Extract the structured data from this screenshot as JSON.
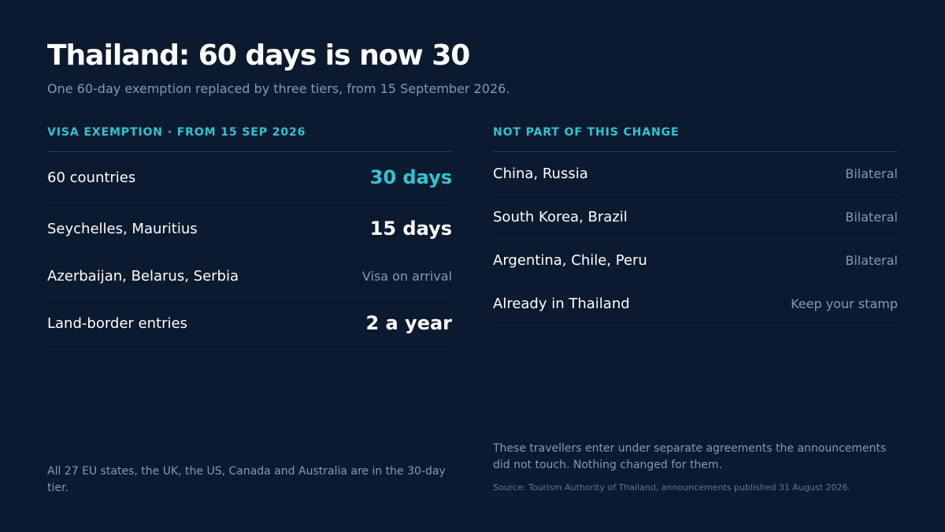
{
  "title": "Thailand: 60 days is now 30",
  "subtitle": "One 60-day exemption replaced by three tiers, from 15 September 2026.",
  "left_panel": {
    "heading": "VISA EXEMPTION · FROM 15 SEP 2026",
    "rows": [
      {
        "label": "60 countries",
        "value": "30 days"
      },
      {
        "label": "Seychelles, Mauritius",
        "value": "15 days"
      },
      {
        "label": "Azerbaijan, Belarus, Serbia",
        "value": "Visa on arrival"
      },
      {
        "label": "Land-border entries",
        "value": "2 a year"
      }
    ],
    "footnote": "All 27 EU states, the UK, the US, Canada and Australia are in the 30-day tier."
  },
  "right_panel": {
    "heading": "NOT PART OF THIS CHANGE",
    "rows": [
      {
        "label": "China, Russia",
        "value": "Bilateral"
      },
      {
        "label": "South Korea, Brazil",
        "value": "Bilateral"
      },
      {
        "label": "Argentina, Chile, Peru",
        "value": "Bilateral"
      },
      {
        "label": "Already in Thailand",
        "value": "Keep your stamp"
      }
    ],
    "footnote": "These travellers enter under separate agreements the announcements did not touch. Nothing changed for them."
  },
  "source": "Source: Tourism Authority of Thailand, announcements published 31 August 2026.",
  "colors": {
    "background": "#0b1a2e",
    "accent": "#2ec5d3",
    "muted_text": "#8a98ab"
  }
}
